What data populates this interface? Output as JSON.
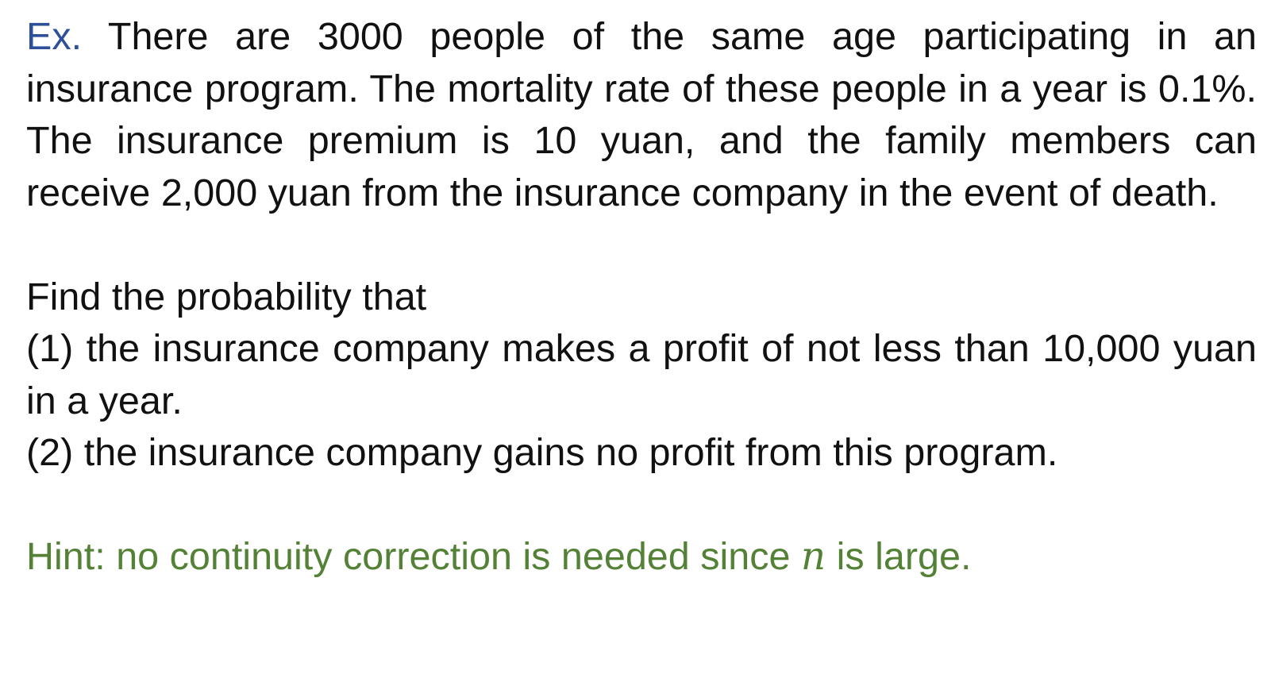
{
  "colors": {
    "text": "#111111",
    "ex_label": "#2e4f9a",
    "hint": "#538135"
  },
  "problem": {
    "ex_label": "Ex.",
    "statement": " There are 3000 people of the same age participating in an insurance program. The mortality rate of these people in a year is 0.1%. The insurance premium is 10 yuan, and the family members can receive 2,000 yuan from the insurance company in the event of death."
  },
  "question": {
    "intro": "Find the probability that",
    "part1": "(1) the insurance company makes a profit of not less than 10,000 yuan in a year.",
    "part2": "(2) the insurance company gains no profit from this program."
  },
  "hint": {
    "before": "Hint: no continuity correction is needed since ",
    "variable": "n",
    "after": " is large."
  }
}
